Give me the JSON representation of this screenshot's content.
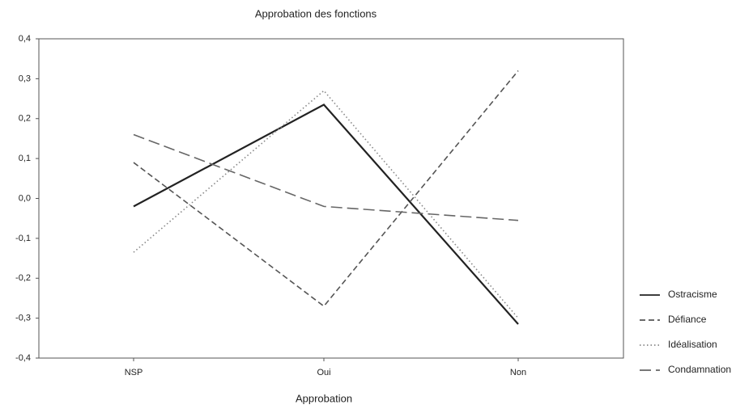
{
  "chart_data": {
    "type": "line",
    "title": "Approbation des fonctions",
    "x_label": "Approbation",
    "categories": [
      "NSP",
      "Oui",
      "Non"
    ],
    "series": [
      {
        "name": "Ostracisme",
        "color": "#222222",
        "style": "solid",
        "values": [
          -0.02,
          0.235,
          -0.315
        ]
      },
      {
        "name": "Défiance",
        "color": "#555555",
        "style": "dashed",
        "values": [
          0.09,
          -0.27,
          0.32
        ]
      },
      {
        "name": "Idéalisation",
        "color": "#888888",
        "style": "dotted",
        "values": [
          -0.135,
          0.27,
          -0.3
        ]
      },
      {
        "name": "Condamnation",
        "color": "#666666",
        "style": "longdash",
        "values": [
          0.16,
          -0.02,
          -0.055
        ]
      }
    ],
    "ylim": [
      -0.4,
      0.4
    ],
    "yticks": [
      {
        "value": 0.4,
        "label": "0,4"
      },
      {
        "value": 0.3,
        "label": "0,3"
      },
      {
        "value": 0.2,
        "label": "0,2"
      },
      {
        "value": 0.1,
        "label": "0,1"
      },
      {
        "value": 0.0,
        "label": "0,0"
      },
      {
        "value": -0.1,
        "label": "-0,1"
      },
      {
        "value": -0.2,
        "label": "-0,2"
      },
      {
        "value": -0.3,
        "label": "-0,3"
      },
      {
        "value": -0.4,
        "label": "-0,4"
      }
    ],
    "grid": false,
    "legend": "right"
  }
}
